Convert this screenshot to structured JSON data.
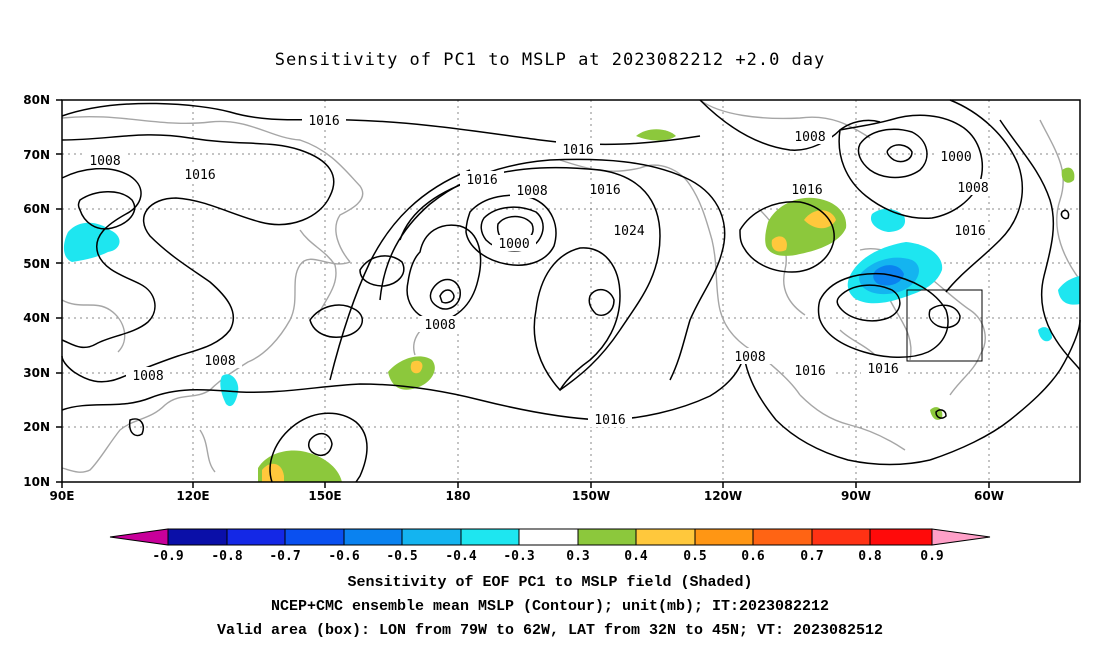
{
  "title": "Sensitivity of PC1 to MSLP at 2023082212 +2.0 day",
  "map": {
    "lat_labels": [
      "80N",
      "70N",
      "60N",
      "50N",
      "40N",
      "30N",
      "20N",
      "10N"
    ],
    "lon_labels": [
      "90E",
      "120E",
      "150E",
      "180",
      "150W",
      "120W",
      "90W",
      "60W"
    ],
    "contour_labels": [
      {
        "text": "1016",
        "at": "Arctic north of Siberia"
      },
      {
        "text": "1008",
        "at": "Siberia"
      },
      {
        "text": "1016",
        "at": "Central Asia"
      },
      {
        "text": "1016",
        "at": "Arctic Ocean"
      },
      {
        "text": "1016",
        "at": "Bering Strait"
      },
      {
        "text": "1008",
        "at": "Bering Sea low"
      },
      {
        "text": "1000",
        "at": "Bering Sea low center"
      },
      {
        "text": "1016",
        "at": "Alaska"
      },
      {
        "text": "1024",
        "at": "North Pacific High"
      },
      {
        "text": "1008",
        "at": "Aleutian low"
      },
      {
        "text": "1016",
        "at": "Subtropical Pacific"
      },
      {
        "text": "1008",
        "at": "East China"
      },
      {
        "text": "1008",
        "at": "South China"
      },
      {
        "text": "1008",
        "at": "Baja California"
      },
      {
        "text": "1016",
        "at": "Gulf of Mexico"
      },
      {
        "text": "1016",
        "at": "Western Atlantic"
      },
      {
        "text": "1008",
        "at": "Hudson Bay"
      },
      {
        "text": "1016",
        "at": "Canadian Prairies"
      },
      {
        "text": "1000",
        "at": "Baffin Island low"
      },
      {
        "text": "1008",
        "at": "Labrador"
      },
      {
        "text": "1016",
        "at": "Newfoundland"
      }
    ],
    "valid_box": {
      "lon_from": "79W",
      "lon_to": "62W",
      "lat_from": "32N",
      "lat_to": "45N"
    }
  },
  "colorbar": {
    "labels": [
      "-0.9",
      "-0.8",
      "-0.7",
      "-0.6",
      "-0.5",
      "-0.4",
      "-0.3",
      "0.3",
      "0.4",
      "0.5",
      "0.6",
      "0.7",
      "0.8",
      "0.9"
    ],
    "colors": [
      "#c8009a",
      "#0a0fa8",
      "#1428e6",
      "#0a50f0",
      "#0a82f0",
      "#14b4f0",
      "#1ee6f0",
      "#ffffff",
      "#8cc83c",
      "#ffc83c",
      "#ff9614",
      "#ff6414",
      "#ff3214",
      "#ff0a0a",
      "#ffa0c8"
    ]
  },
  "captions": {
    "line1": "Sensitivity of EOF PC1 to MSLP field (Shaded)",
    "line2": "NCEP+CMC ensemble mean MSLP (Contour); unit(mb); IT:2023082212",
    "line3": "Valid area (box): LON from 79W to 62W, LAT from 32N to 45N; VT: 2023082512"
  }
}
